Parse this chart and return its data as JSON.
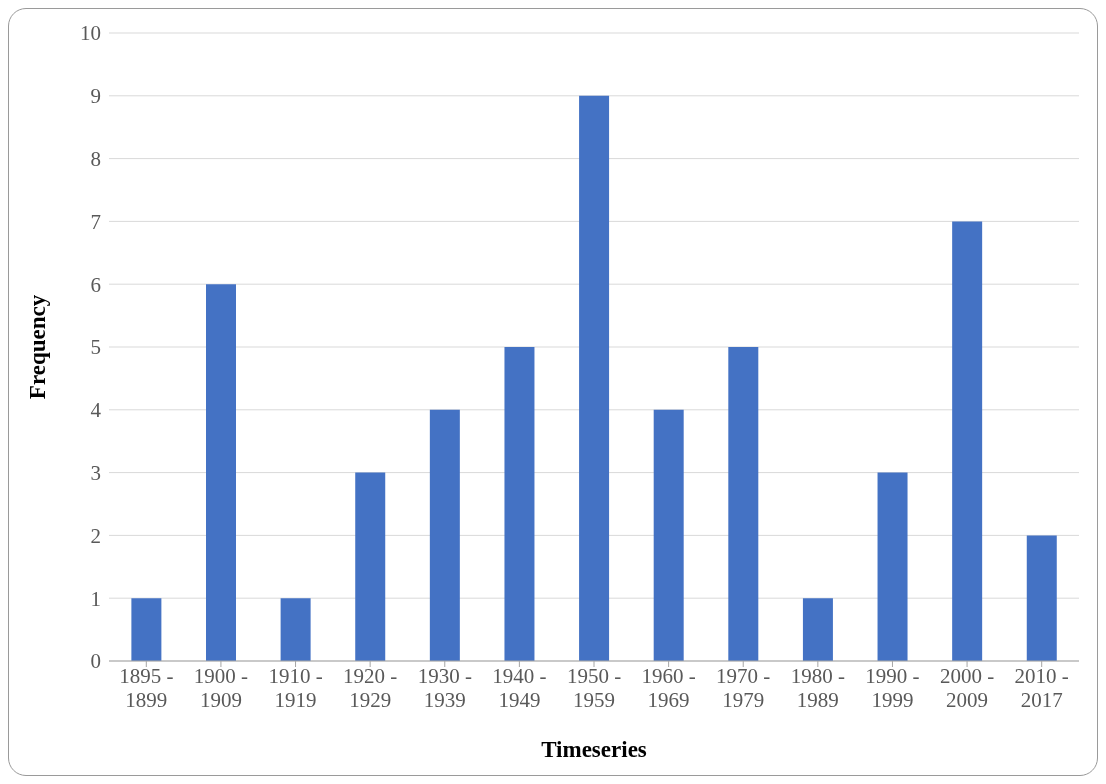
{
  "chart_data": {
    "type": "bar",
    "xlabel": "Timeseries",
    "ylabel": "Frequency",
    "categories": [
      "1895 - 1899",
      "1900 - 1909",
      "1910 - 1919",
      "1920 - 1929",
      "1930 - 1939",
      "1940 - 1949",
      "1950 - 1959",
      "1960 - 1969",
      "1970 - 1979",
      "1980 - 1989",
      "1990 - 1999",
      "2000 - 2009",
      "2010 - 2017"
    ],
    "values": [
      1,
      6,
      1,
      3,
      4,
      5,
      9,
      4,
      5,
      1,
      3,
      7,
      2
    ],
    "color": "#4472c4",
    "ylim": [
      0,
      10
    ],
    "yticks": [
      0,
      1,
      2,
      3,
      4,
      5,
      6,
      7,
      8,
      9,
      10
    ],
    "grid": "y"
  }
}
